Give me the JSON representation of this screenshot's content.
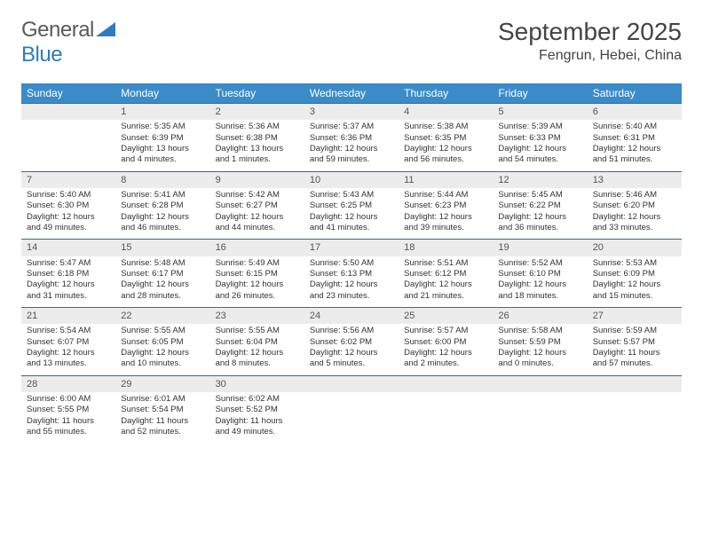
{
  "logo": {
    "text1": "General",
    "text2": "Blue"
  },
  "title": "September 2025",
  "location": "Fengrun, Hebei, China",
  "header_color": "#3b8bc9",
  "border_color": "#3b6a8f",
  "daynum_bg": "#ececec",
  "weekdays": [
    "Sunday",
    "Monday",
    "Tuesday",
    "Wednesday",
    "Thursday",
    "Friday",
    "Saturday"
  ],
  "weeks": [
    [
      null,
      {
        "d": "1",
        "sr": "5:35 AM",
        "ss": "6:39 PM",
        "dl": "13 hours and 4 minutes."
      },
      {
        "d": "2",
        "sr": "5:36 AM",
        "ss": "6:38 PM",
        "dl": "13 hours and 1 minutes."
      },
      {
        "d": "3",
        "sr": "5:37 AM",
        "ss": "6:36 PM",
        "dl": "12 hours and 59 minutes."
      },
      {
        "d": "4",
        "sr": "5:38 AM",
        "ss": "6:35 PM",
        "dl": "12 hours and 56 minutes."
      },
      {
        "d": "5",
        "sr": "5:39 AM",
        "ss": "6:33 PM",
        "dl": "12 hours and 54 minutes."
      },
      {
        "d": "6",
        "sr": "5:40 AM",
        "ss": "6:31 PM",
        "dl": "12 hours and 51 minutes."
      }
    ],
    [
      {
        "d": "7",
        "sr": "5:40 AM",
        "ss": "6:30 PM",
        "dl": "12 hours and 49 minutes."
      },
      {
        "d": "8",
        "sr": "5:41 AM",
        "ss": "6:28 PM",
        "dl": "12 hours and 46 minutes."
      },
      {
        "d": "9",
        "sr": "5:42 AM",
        "ss": "6:27 PM",
        "dl": "12 hours and 44 minutes."
      },
      {
        "d": "10",
        "sr": "5:43 AM",
        "ss": "6:25 PM",
        "dl": "12 hours and 41 minutes."
      },
      {
        "d": "11",
        "sr": "5:44 AM",
        "ss": "6:23 PM",
        "dl": "12 hours and 39 minutes."
      },
      {
        "d": "12",
        "sr": "5:45 AM",
        "ss": "6:22 PM",
        "dl": "12 hours and 36 minutes."
      },
      {
        "d": "13",
        "sr": "5:46 AM",
        "ss": "6:20 PM",
        "dl": "12 hours and 33 minutes."
      }
    ],
    [
      {
        "d": "14",
        "sr": "5:47 AM",
        "ss": "6:18 PM",
        "dl": "12 hours and 31 minutes."
      },
      {
        "d": "15",
        "sr": "5:48 AM",
        "ss": "6:17 PM",
        "dl": "12 hours and 28 minutes."
      },
      {
        "d": "16",
        "sr": "5:49 AM",
        "ss": "6:15 PM",
        "dl": "12 hours and 26 minutes."
      },
      {
        "d": "17",
        "sr": "5:50 AM",
        "ss": "6:13 PM",
        "dl": "12 hours and 23 minutes."
      },
      {
        "d": "18",
        "sr": "5:51 AM",
        "ss": "6:12 PM",
        "dl": "12 hours and 21 minutes."
      },
      {
        "d": "19",
        "sr": "5:52 AM",
        "ss": "6:10 PM",
        "dl": "12 hours and 18 minutes."
      },
      {
        "d": "20",
        "sr": "5:53 AM",
        "ss": "6:09 PM",
        "dl": "12 hours and 15 minutes."
      }
    ],
    [
      {
        "d": "21",
        "sr": "5:54 AM",
        "ss": "6:07 PM",
        "dl": "12 hours and 13 minutes."
      },
      {
        "d": "22",
        "sr": "5:55 AM",
        "ss": "6:05 PM",
        "dl": "12 hours and 10 minutes."
      },
      {
        "d": "23",
        "sr": "5:55 AM",
        "ss": "6:04 PM",
        "dl": "12 hours and 8 minutes."
      },
      {
        "d": "24",
        "sr": "5:56 AM",
        "ss": "6:02 PM",
        "dl": "12 hours and 5 minutes."
      },
      {
        "d": "25",
        "sr": "5:57 AM",
        "ss": "6:00 PM",
        "dl": "12 hours and 2 minutes."
      },
      {
        "d": "26",
        "sr": "5:58 AM",
        "ss": "5:59 PM",
        "dl": "12 hours and 0 minutes."
      },
      {
        "d": "27",
        "sr": "5:59 AM",
        "ss": "5:57 PM",
        "dl": "11 hours and 57 minutes."
      }
    ],
    [
      {
        "d": "28",
        "sr": "6:00 AM",
        "ss": "5:55 PM",
        "dl": "11 hours and 55 minutes."
      },
      {
        "d": "29",
        "sr": "6:01 AM",
        "ss": "5:54 PM",
        "dl": "11 hours and 52 minutes."
      },
      {
        "d": "30",
        "sr": "6:02 AM",
        "ss": "5:52 PM",
        "dl": "11 hours and 49 minutes."
      },
      null,
      null,
      null,
      null
    ]
  ]
}
